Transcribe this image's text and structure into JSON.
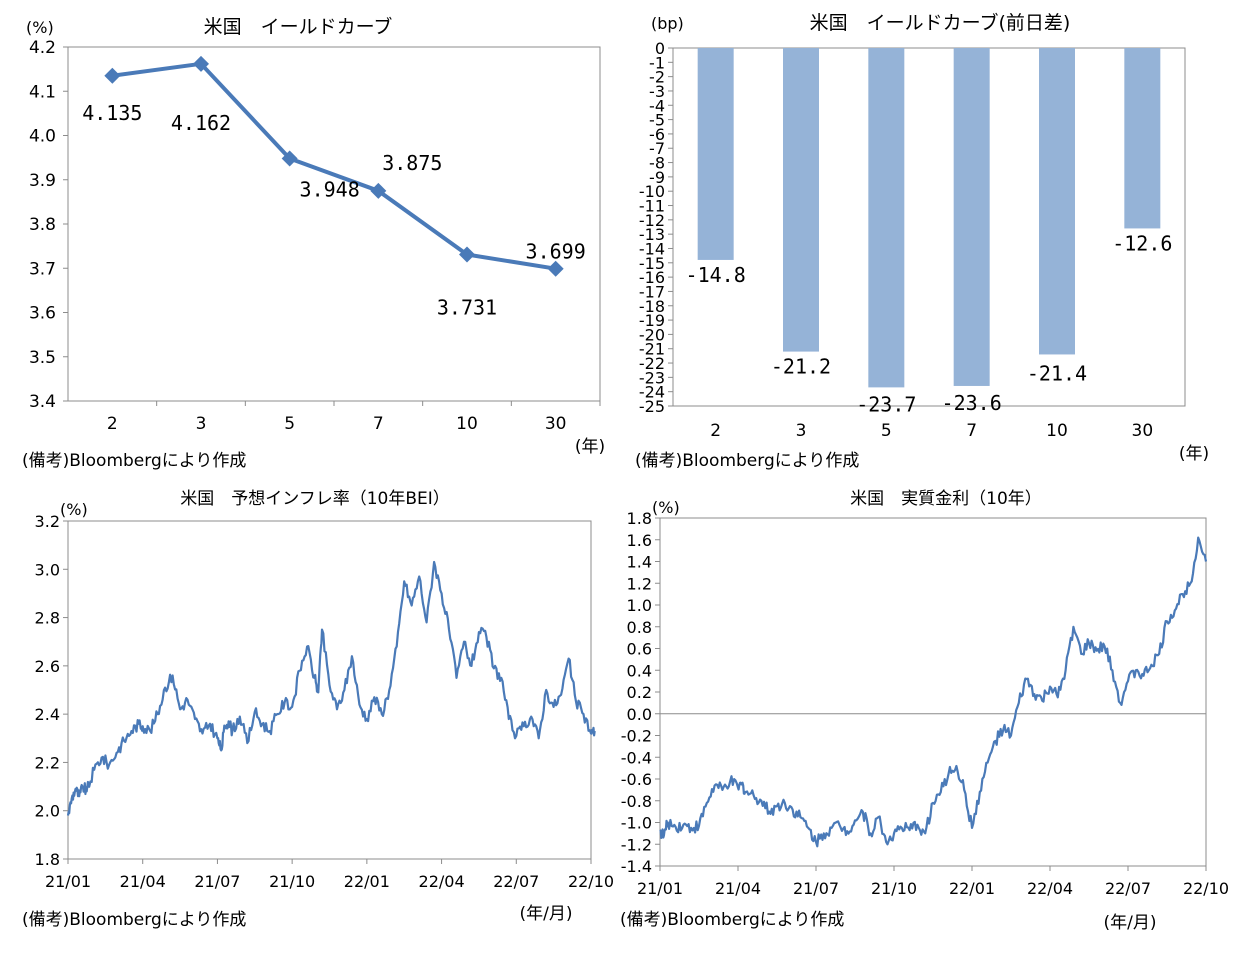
{
  "chart_data": [
    {
      "type": "line",
      "title": "米国　イールドカーブ",
      "unit_label": "(%)",
      "x_unit_label": "(年)",
      "source_note": "(備考)Bloombergにより作成",
      "categories": [
        "2",
        "3",
        "5",
        "7",
        "10",
        "30"
      ],
      "values": [
        4.135,
        4.162,
        3.948,
        3.875,
        3.731,
        3.699
      ],
      "data_labels": [
        "4.135",
        "4.162",
        "3.948",
        "3.875",
        "3.731",
        "3.699"
      ],
      "ylim": [
        3.4,
        4.2
      ],
      "y_ticks": [
        "3.4",
        "3.5",
        "3.6",
        "3.7",
        "3.8",
        "3.9",
        "4.0",
        "4.1",
        "4.2"
      ],
      "color": "#4a7ab8",
      "marker": "diamond"
    },
    {
      "type": "bar",
      "title": "米国　イールドカーブ(前日差)",
      "unit_label": "(bp)",
      "x_unit_label": "(年)",
      "source_note": "(備考)Bloombergにより作成",
      "categories": [
        "2",
        "3",
        "5",
        "7",
        "10",
        "30"
      ],
      "values": [
        -14.8,
        -21.2,
        -23.7,
        -23.6,
        -21.4,
        -12.6
      ],
      "data_labels": [
        "-14.8",
        "-21.2",
        "-23.7",
        "-23.6",
        "-21.4",
        "-12.6"
      ],
      "ylim": [
        -25,
        0
      ],
      "y_ticks": [
        "0",
        "-1",
        "-2",
        "-3",
        "-4",
        "-5",
        "-6",
        "-7",
        "-8",
        "-9",
        "-10",
        "-11",
        "-12",
        "-13",
        "-14",
        "-15",
        "-16",
        "-17",
        "-18",
        "-19",
        "-20",
        "-21",
        "-22",
        "-23",
        "-24",
        "-25"
      ],
      "color": "#95b3d7"
    },
    {
      "type": "line",
      "title": "米国　予想インフレ率（10年BEI）",
      "unit_label": "(%)",
      "x_unit_label": "(年/月)",
      "source_note": "(備考)Bloombergにより作成",
      "x_ticks": [
        "21/01",
        "21/04",
        "21/07",
        "21/10",
        "22/01",
        "22/04",
        "22/07",
        "22/10"
      ],
      "ylim": [
        1.8,
        3.2
      ],
      "y_ticks": [
        "1.8",
        "2.0",
        "2.2",
        "2.4",
        "2.6",
        "2.8",
        "3.0",
        "3.2"
      ],
      "color": "#4a7ab8",
      "series_time": [
        0,
        0.05,
        0.1,
        0.15,
        0.2,
        0.25,
        0.35,
        0.45,
        0.55,
        0.65,
        0.75,
        0.85,
        0.95,
        1.0,
        1.1,
        1.2,
        1.3,
        1.4,
        1.5,
        1.6,
        1.7,
        1.8,
        1.9,
        2.0,
        2.05,
        2.1,
        2.15,
        2.2,
        2.3,
        2.4,
        2.5,
        2.6,
        2.7,
        2.8,
        2.9,
        3.0,
        3.1,
        3.2,
        3.3,
        3.35,
        3.4,
        3.5,
        3.6,
        3.7,
        3.8,
        3.9,
        4.0,
        4.1,
        4.2,
        4.3,
        4.4,
        4.5,
        4.6,
        4.7,
        4.8,
        4.9,
        5.0,
        5.1,
        5.2,
        5.3,
        5.4,
        5.5,
        5.6,
        5.7,
        5.8,
        5.9,
        6.0,
        6.1,
        6.2,
        6.3,
        6.4,
        6.5,
        6.6,
        6.7,
        6.8,
        6.9,
        7.0,
        7.05
      ],
      "series_values": [
        1.98,
        2.05,
        2.09,
        2.06,
        2.1,
        2.08,
        2.17,
        2.22,
        2.19,
        2.24,
        2.29,
        2.33,
        2.36,
        2.35,
        2.33,
        2.4,
        2.51,
        2.56,
        2.42,
        2.46,
        2.38,
        2.32,
        2.36,
        2.3,
        2.25,
        2.35,
        2.37,
        2.33,
        2.39,
        2.28,
        2.41,
        2.36,
        2.33,
        2.4,
        2.45,
        2.43,
        2.58,
        2.68,
        2.55,
        2.49,
        2.75,
        2.52,
        2.42,
        2.5,
        2.64,
        2.44,
        2.38,
        2.47,
        2.4,
        2.5,
        2.68,
        2.95,
        2.85,
        2.97,
        2.78,
        3.03,
        2.9,
        2.75,
        2.55,
        2.7,
        2.6,
        2.74,
        2.72,
        2.59,
        2.55,
        2.38,
        2.31,
        2.35,
        2.39,
        2.3,
        2.5,
        2.43,
        2.48,
        2.63,
        2.45,
        2.4,
        2.32,
        2.33
      ]
    },
    {
      "type": "line",
      "title": "米国　実質金利（10年）",
      "unit_label": "(%)",
      "x_unit_label": "(年/月)",
      "source_note": "(備考)Bloombergにより作成",
      "x_ticks": [
        "21/01",
        "21/04",
        "21/07",
        "21/10",
        "22/01",
        "22/04",
        "22/07",
        "22/10"
      ],
      "ylim": [
        -1.4,
        1.8
      ],
      "y_ticks": [
        "-1.4",
        "-1.2",
        "-1.0",
        "-0.8",
        "-0.6",
        "-0.4",
        "-0.2",
        "0.0",
        "0.2",
        "0.4",
        "0.6",
        "0.8",
        "1.0",
        "1.2",
        "1.4",
        "1.6",
        "1.8"
      ],
      "zero_line": true,
      "color": "#4a7ab8",
      "series_time": [
        0,
        0.05,
        0.1,
        0.2,
        0.3,
        0.4,
        0.5,
        0.6,
        0.7,
        0.8,
        0.9,
        1.0,
        1.05,
        1.1,
        1.2,
        1.3,
        1.4,
        1.5,
        1.6,
        1.7,
        1.8,
        1.9,
        2.0,
        2.1,
        2.2,
        2.3,
        2.4,
        2.5,
        2.6,
        2.7,
        2.8,
        2.9,
        3.0,
        3.1,
        3.2,
        3.3,
        3.4,
        3.5,
        3.6,
        3.7,
        3.8,
        3.9,
        4.0,
        4.1,
        4.2,
        4.3,
        4.4,
        4.5,
        4.6,
        4.7,
        4.8,
        4.9,
        5.0,
        5.1,
        5.2,
        5.3,
        5.4,
        5.5,
        5.6,
        5.7,
        5.8,
        5.9,
        6.0,
        6.1,
        6.2,
        6.3,
        6.4,
        6.5,
        6.6,
        6.7,
        6.8,
        6.9,
        7.0
      ],
      "series_values": [
        -1.08,
        -1.12,
        -1.0,
        -1.04,
        -1.02,
        -1.05,
        -1.03,
        -0.82,
        -0.66,
        -0.7,
        -0.62,
        -0.68,
        -0.65,
        -0.72,
        -0.75,
        -0.8,
        -0.9,
        -0.85,
        -0.82,
        -0.88,
        -0.95,
        -1.05,
        -1.18,
        -1.1,
        -1.05,
        -1.02,
        -1.08,
        -0.98,
        -0.9,
        -1.1,
        -0.95,
        -1.18,
        -1.1,
        -1.05,
        -1.07,
        -1.02,
        -1.1,
        -0.82,
        -0.72,
        -0.55,
        -0.48,
        -0.7,
        -1.05,
        -0.72,
        -0.45,
        -0.25,
        -0.15,
        -0.2,
        0.1,
        0.32,
        0.18,
        0.12,
        0.25,
        0.15,
        0.4,
        0.8,
        0.55,
        0.65,
        0.58,
        0.62,
        0.4,
        0.1,
        0.3,
        0.4,
        0.35,
        0.45,
        0.55,
        0.85,
        0.95,
        1.1,
        1.2,
        1.62,
        1.4
      ]
    }
  ]
}
